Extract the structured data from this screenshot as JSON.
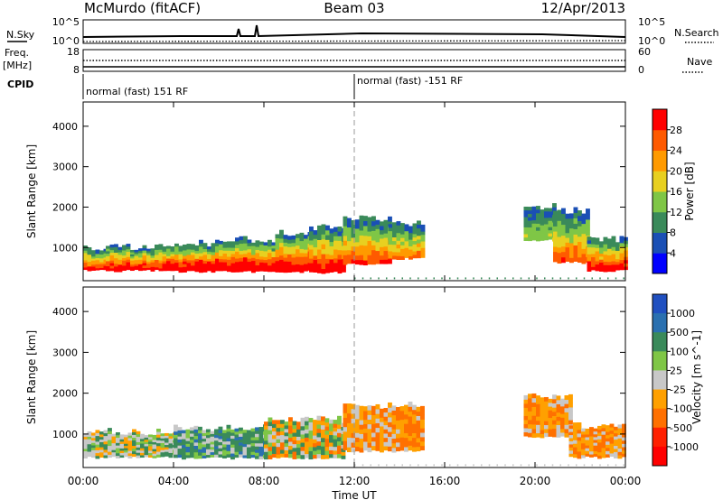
{
  "header": {
    "station": "McMurdo (fitACF)",
    "beam": "Beam 03",
    "date": "12/Apr/2013"
  },
  "top_panels": {
    "nsky_label": "N.Sky",
    "nsky_top_tick": "10^5",
    "nsky_bottom_tick": "10^0",
    "nsearch_label": "N.Search",
    "freq_label": "Freq.",
    "freq_unit": "[MHz]",
    "freq_top_tick": "18",
    "freq_bottom_tick": "8",
    "nave_label": "Nave",
    "nave_top_tick": "60",
    "nave_bottom_tick": "0",
    "cpid_label": "CPID",
    "cpid_segments": [
      "normal (fast) 151 RF",
      "normal (fast) -151 RF"
    ]
  },
  "chart_data": [
    {
      "type": "heatmap",
      "title": "",
      "xlabel": "Time UT",
      "ylabel": "Slant Range [km]",
      "x_ticks": [
        "00:00",
        "04:00",
        "08:00",
        "12:00",
        "16:00",
        "20:00",
        "00:00"
      ],
      "x_hours": [
        0,
        4,
        8,
        12,
        16,
        20,
        24
      ],
      "y_ticks": [
        1000,
        2000,
        3000,
        4000
      ],
      "ylim": [
        180,
        4600
      ],
      "colorbar": {
        "label": "Power [dB]",
        "ticks": [
          4,
          8,
          12,
          16,
          20,
          24,
          28
        ],
        "colors": [
          "#0000ff",
          "#1a4fb5",
          "#3a8a5a",
          "#7fc646",
          "#e8d020",
          "#ff9a00",
          "#ff5a00",
          "#ff0000"
        ]
      },
      "echo_regions": [
        {
          "t0": 0.0,
          "t1": 1.0,
          "r0": 400,
          "r1": 1050,
          "core": 0.65
        },
        {
          "t0": 1.0,
          "t1": 3.5,
          "r0": 400,
          "r1": 1100,
          "core": 0.7
        },
        {
          "t0": 3.5,
          "t1": 6.0,
          "r0": 380,
          "r1": 1200,
          "core": 0.8
        },
        {
          "t0": 6.0,
          "t1": 8.5,
          "r0": 380,
          "r1": 1300,
          "core": 0.8
        },
        {
          "t0": 8.5,
          "t1": 10.0,
          "r0": 380,
          "r1": 1450,
          "core": 0.75
        },
        {
          "t0": 10.0,
          "t1": 11.5,
          "r0": 350,
          "r1": 1600,
          "core": 0.7
        },
        {
          "t0": 11.5,
          "t1": 13.5,
          "r0": 550,
          "r1": 1800,
          "core": 0.6
        },
        {
          "t0": 13.5,
          "t1": 15.0,
          "r0": 700,
          "r1": 1700,
          "core": 0.5
        },
        {
          "t0": 19.5,
          "t1": 20.8,
          "r0": 1150,
          "r1": 2100,
          "core": 0.3
        },
        {
          "t0": 20.8,
          "t1": 22.3,
          "r0": 600,
          "r1": 2000,
          "core": 0.55
        },
        {
          "t0": 22.3,
          "t1": 24.0,
          "r0": 400,
          "r1": 1300,
          "core": 0.7
        }
      ]
    },
    {
      "type": "heatmap",
      "title": "",
      "xlabel": "Time UT",
      "ylabel": "Slant Range [km]",
      "x_ticks": [
        "00:00",
        "04:00",
        "08:00",
        "12:00",
        "16:00",
        "20:00",
        "00:00"
      ],
      "x_hours": [
        0,
        4,
        8,
        12,
        16,
        20,
        24
      ],
      "y_ticks": [
        1000,
        2000,
        3000,
        4000
      ],
      "ylim": [
        180,
        4600
      ],
      "colorbar": {
        "label": "Velocity [m s^-1]",
        "ticks": [
          "1000",
          "500",
          "100",
          "25",
          "-25",
          "-100",
          "-500",
          "-1000"
        ],
        "colors": [
          "#2050c0",
          "#2a70b0",
          "#3a8a5a",
          "#7fc646",
          "#c8c8c8",
          "#ffa000",
          "#ff7000",
          "#ff2000",
          "#ff0000"
        ]
      },
      "echo_regions": [
        {
          "t0": 0.0,
          "t1": 4.0,
          "r0": 400,
          "r1": 1150,
          "palette": "grey-green-orange"
        },
        {
          "t0": 4.0,
          "t1": 8.0,
          "r0": 380,
          "r1": 1250,
          "palette": "green"
        },
        {
          "t0": 8.0,
          "t1": 11.5,
          "r0": 380,
          "r1": 1450,
          "palette": "green-orange"
        },
        {
          "t0": 11.5,
          "t1": 15.0,
          "r0": 550,
          "r1": 1800,
          "palette": "orange"
        },
        {
          "t0": 19.5,
          "t1": 21.5,
          "r0": 900,
          "r1": 2000,
          "palette": "orange"
        },
        {
          "t0": 21.5,
          "t1": 24.0,
          "r0": 400,
          "r1": 1300,
          "palette": "orange"
        }
      ]
    }
  ]
}
